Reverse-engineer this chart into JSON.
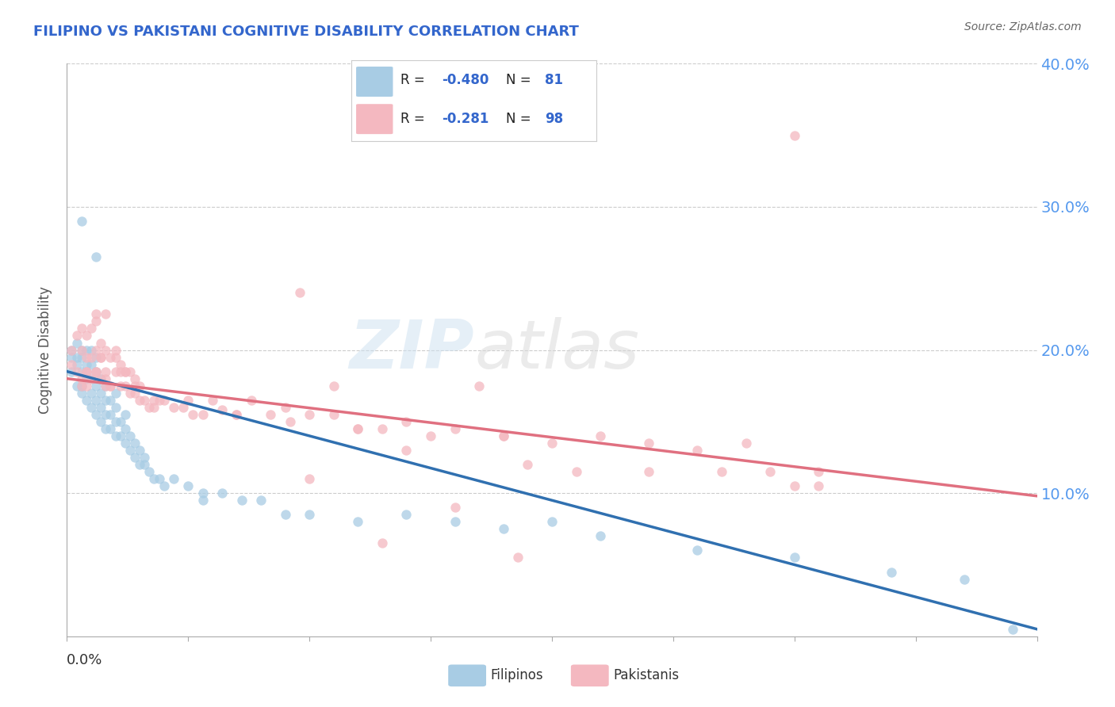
{
  "title": "FILIPINO VS PAKISTANI COGNITIVE DISABILITY CORRELATION CHART",
  "source": "Source: ZipAtlas.com",
  "ylabel": "Cognitive Disability",
  "x_min": 0.0,
  "x_max": 0.2,
  "y_min": 0.0,
  "y_max": 0.4,
  "yticks": [
    0.1,
    0.2,
    0.3,
    0.4
  ],
  "ytick_labels": [
    "10.0%",
    "20.0%",
    "30.0%",
    "40.0%"
  ],
  "xticks": [
    0.0,
    0.025,
    0.05,
    0.075,
    0.1,
    0.125,
    0.15,
    0.175,
    0.2
  ],
  "color_filipino": "#a8cce4",
  "color_pakistani": "#f4b8c0",
  "color_line_filipino": "#3070b0",
  "color_line_pakistani": "#e07080",
  "color_title": "#3366cc",
  "color_ytick": "#5599ee",
  "color_source": "#666666",
  "background_color": "#ffffff",
  "fil_line_start_y": 0.185,
  "fil_line_end_y": 0.005,
  "pak_line_start_y": 0.18,
  "pak_line_end_y": 0.098,
  "filipino_x": [
    0.001,
    0.001,
    0.001,
    0.002,
    0.002,
    0.002,
    0.002,
    0.003,
    0.003,
    0.003,
    0.003,
    0.003,
    0.004,
    0.004,
    0.004,
    0.004,
    0.004,
    0.005,
    0.005,
    0.005,
    0.005,
    0.005,
    0.006,
    0.006,
    0.006,
    0.006,
    0.006,
    0.007,
    0.007,
    0.007,
    0.007,
    0.008,
    0.008,
    0.008,
    0.008,
    0.009,
    0.009,
    0.009,
    0.01,
    0.01,
    0.01,
    0.01,
    0.011,
    0.011,
    0.012,
    0.012,
    0.012,
    0.013,
    0.013,
    0.014,
    0.014,
    0.015,
    0.015,
    0.016,
    0.016,
    0.017,
    0.018,
    0.019,
    0.02,
    0.022,
    0.025,
    0.028,
    0.032,
    0.036,
    0.04,
    0.045,
    0.05,
    0.06,
    0.07,
    0.08,
    0.09,
    0.1,
    0.11,
    0.13,
    0.15,
    0.17,
    0.185,
    0.195,
    0.003,
    0.006,
    0.028
  ],
  "filipino_y": [
    0.195,
    0.185,
    0.2,
    0.175,
    0.19,
    0.205,
    0.195,
    0.17,
    0.185,
    0.195,
    0.2,
    0.175,
    0.165,
    0.18,
    0.19,
    0.2,
    0.185,
    0.16,
    0.17,
    0.18,
    0.19,
    0.2,
    0.155,
    0.165,
    0.175,
    0.185,
    0.195,
    0.15,
    0.16,
    0.17,
    0.18,
    0.145,
    0.155,
    0.165,
    0.175,
    0.145,
    0.155,
    0.165,
    0.14,
    0.15,
    0.16,
    0.17,
    0.14,
    0.15,
    0.135,
    0.145,
    0.155,
    0.13,
    0.14,
    0.125,
    0.135,
    0.12,
    0.13,
    0.12,
    0.125,
    0.115,
    0.11,
    0.11,
    0.105,
    0.11,
    0.105,
    0.1,
    0.1,
    0.095,
    0.095,
    0.085,
    0.085,
    0.08,
    0.085,
    0.08,
    0.075,
    0.08,
    0.07,
    0.06,
    0.055,
    0.045,
    0.04,
    0.005,
    0.29,
    0.265,
    0.095
  ],
  "pakistani_x": [
    0.001,
    0.001,
    0.002,
    0.002,
    0.003,
    0.003,
    0.003,
    0.004,
    0.004,
    0.004,
    0.005,
    0.005,
    0.005,
    0.006,
    0.006,
    0.006,
    0.007,
    0.007,
    0.007,
    0.008,
    0.008,
    0.008,
    0.009,
    0.009,
    0.01,
    0.01,
    0.011,
    0.011,
    0.012,
    0.012,
    0.013,
    0.013,
    0.014,
    0.014,
    0.015,
    0.015,
    0.016,
    0.017,
    0.018,
    0.019,
    0.02,
    0.022,
    0.024,
    0.026,
    0.028,
    0.03,
    0.032,
    0.035,
    0.038,
    0.042,
    0.046,
    0.05,
    0.055,
    0.06,
    0.065,
    0.07,
    0.08,
    0.09,
    0.1,
    0.11,
    0.12,
    0.13,
    0.14,
    0.003,
    0.004,
    0.006,
    0.007,
    0.008,
    0.009,
    0.01,
    0.012,
    0.014,
    0.018,
    0.025,
    0.035,
    0.045,
    0.06,
    0.075,
    0.09,
    0.055,
    0.048,
    0.07,
    0.085,
    0.095,
    0.105,
    0.12,
    0.135,
    0.145,
    0.155,
    0.05,
    0.065,
    0.08,
    0.093,
    0.004,
    0.006,
    0.008,
    0.011,
    0.15,
    0.15,
    0.155
  ],
  "pakistani_y": [
    0.2,
    0.19,
    0.185,
    0.21,
    0.175,
    0.2,
    0.215,
    0.175,
    0.185,
    0.21,
    0.18,
    0.195,
    0.215,
    0.185,
    0.2,
    0.22,
    0.18,
    0.195,
    0.205,
    0.175,
    0.185,
    0.2,
    0.175,
    0.195,
    0.185,
    0.2,
    0.175,
    0.19,
    0.175,
    0.185,
    0.17,
    0.185,
    0.17,
    0.18,
    0.165,
    0.175,
    0.165,
    0.16,
    0.16,
    0.165,
    0.165,
    0.16,
    0.16,
    0.155,
    0.155,
    0.165,
    0.158,
    0.155,
    0.165,
    0.155,
    0.15,
    0.155,
    0.155,
    0.145,
    0.145,
    0.15,
    0.145,
    0.14,
    0.135,
    0.14,
    0.135,
    0.13,
    0.135,
    0.18,
    0.185,
    0.225,
    0.195,
    0.18,
    0.175,
    0.195,
    0.185,
    0.175,
    0.165,
    0.165,
    0.155,
    0.16,
    0.145,
    0.14,
    0.14,
    0.175,
    0.24,
    0.13,
    0.175,
    0.12,
    0.115,
    0.115,
    0.115,
    0.115,
    0.115,
    0.11,
    0.065,
    0.09,
    0.055,
    0.195,
    0.185,
    0.225,
    0.185,
    0.35,
    0.105,
    0.105
  ]
}
